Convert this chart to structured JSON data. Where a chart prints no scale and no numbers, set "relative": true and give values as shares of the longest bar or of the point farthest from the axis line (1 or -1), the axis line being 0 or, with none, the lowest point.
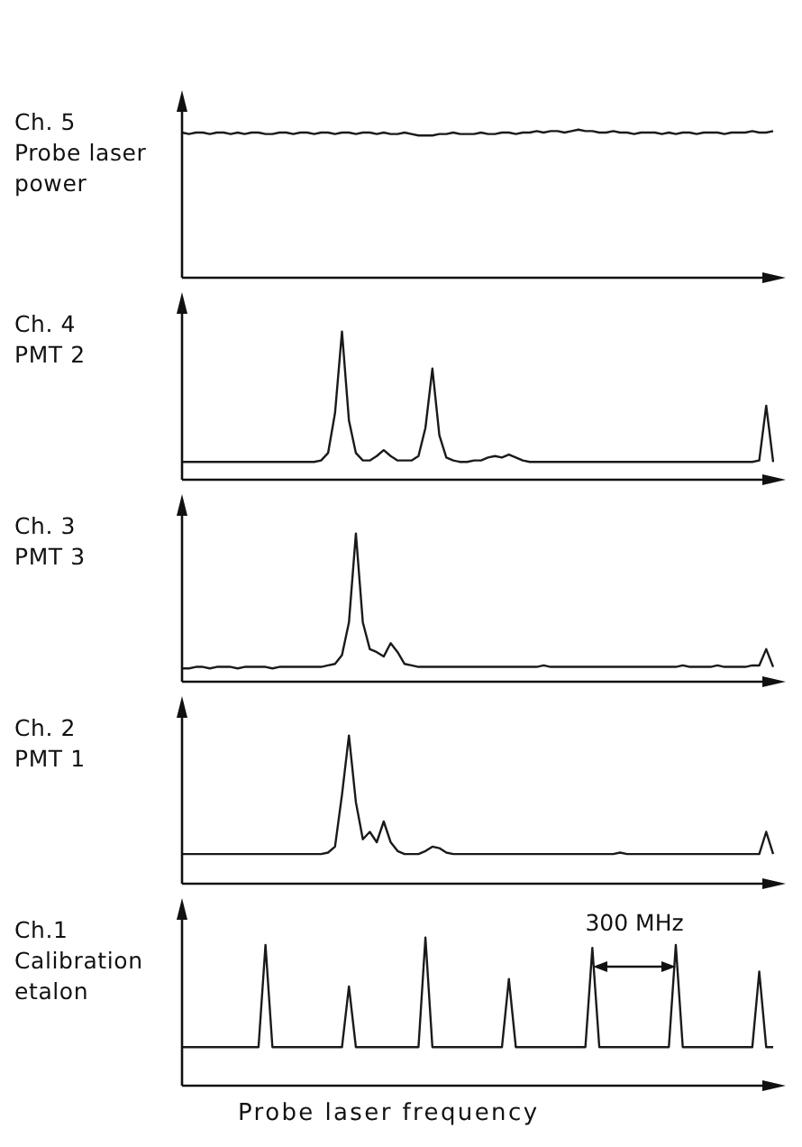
{
  "chart_data": [
    {
      "type": "line",
      "relative": true,
      "title": "Ch. 5",
      "subtitle": "Probe laser power",
      "color": "#1a1a1a",
      "categories": [
        null,
        null,
        null,
        null,
        null,
        null,
        null,
        null,
        null,
        null,
        null,
        null,
        null,
        null,
        null,
        null,
        null,
        null,
        null,
        null,
        null,
        null,
        null,
        null,
        null,
        null,
        null,
        null,
        null,
        null,
        null,
        null,
        null,
        null,
        null,
        null,
        null,
        null,
        null,
        null,
        null,
        null,
        null,
        null,
        null,
        null,
        null,
        null,
        null,
        null,
        null,
        null,
        null,
        null,
        null,
        null,
        null,
        null,
        null,
        null,
        null,
        null,
        null,
        null,
        null,
        null,
        null,
        null,
        null,
        null,
        null,
        null,
        null,
        null,
        null,
        null,
        null,
        null,
        null,
        null,
        null,
        null,
        null,
        null,
        null,
        null
      ],
      "values": [
        0.98,
        0.97,
        0.98,
        0.98,
        0.97,
        0.98,
        0.98,
        0.97,
        0.98,
        0.97,
        0.98,
        0.98,
        0.97,
        0.97,
        0.98,
        0.98,
        0.97,
        0.98,
        0.98,
        0.97,
        0.98,
        0.98,
        0.97,
        0.98,
        0.98,
        0.97,
        0.98,
        0.98,
        0.97,
        0.98,
        0.97,
        0.97,
        0.98,
        0.97,
        0.96,
        0.96,
        0.96,
        0.97,
        0.97,
        0.98,
        0.97,
        0.97,
        0.97,
        0.98,
        0.97,
        0.97,
        0.98,
        0.98,
        0.97,
        0.98,
        0.98,
        0.99,
        0.98,
        0.99,
        0.99,
        0.98,
        0.99,
        1.0,
        0.99,
        0.99,
        0.98,
        0.98,
        0.99,
        0.98,
        0.98,
        0.97,
        0.98,
        0.98,
        0.98,
        0.97,
        0.98,
        0.97,
        0.98,
        0.98,
        0.97,
        0.98,
        0.98,
        0.98,
        0.97,
        0.98,
        0.98,
        0.98,
        0.99,
        0.98,
        0.98,
        0.99
      ]
    },
    {
      "type": "line",
      "relative": true,
      "title": "Ch. 4",
      "subtitle": "PMT 2",
      "color": "#1a1a1a",
      "categories": [
        null,
        null,
        null,
        null,
        null,
        null,
        null,
        null,
        null,
        null,
        null,
        null,
        null,
        null,
        null,
        null,
        null,
        null,
        null,
        null,
        null,
        null,
        null,
        null,
        null,
        null,
        null,
        null,
        null,
        null,
        null,
        null,
        null,
        null,
        null,
        null,
        null,
        null,
        null,
        null,
        null,
        null,
        null,
        null,
        null,
        null,
        null,
        null,
        null,
        null,
        null,
        null,
        null,
        null,
        null,
        null,
        null,
        null,
        null,
        null,
        null,
        null,
        null,
        null,
        null,
        null,
        null,
        null,
        null,
        null,
        null,
        null,
        null,
        null,
        null,
        null,
        null,
        null,
        null,
        null,
        null,
        null,
        null,
        null,
        null,
        null
      ],
      "values": [
        0.12,
        0.12,
        0.12,
        0.12,
        0.12,
        0.12,
        0.12,
        0.12,
        0.12,
        0.12,
        0.12,
        0.12,
        0.12,
        0.12,
        0.12,
        0.12,
        0.12,
        0.12,
        0.12,
        0.12,
        0.13,
        0.18,
        0.45,
        1,
        0.4,
        0.18,
        0.13,
        0.13,
        0.16,
        0.2,
        0.16,
        0.13,
        0.13,
        0.13,
        0.16,
        0.35,
        0.75,
        0.3,
        0.15,
        0.13,
        0.12,
        0.12,
        0.13,
        0.13,
        0.15,
        0.16,
        0.15,
        0.17,
        0.15,
        0.13,
        0.12,
        0.12,
        0.12,
        0.12,
        0.12,
        0.12,
        0.12,
        0.12,
        0.12,
        0.12,
        0.12,
        0.12,
        0.12,
        0.12,
        0.12,
        0.12,
        0.12,
        0.12,
        0.12,
        0.12,
        0.12,
        0.12,
        0.12,
        0.12,
        0.12,
        0.12,
        0.12,
        0.12,
        0.12,
        0.12,
        0.12,
        0.12,
        0.12,
        0.13,
        0.5,
        0.12
      ]
    },
    {
      "type": "line",
      "relative": true,
      "title": "Ch. 3",
      "subtitle": "PMT 3",
      "color": "#1a1a1a",
      "categories": [
        null,
        null,
        null,
        null,
        null,
        null,
        null,
        null,
        null,
        null,
        null,
        null,
        null,
        null,
        null,
        null,
        null,
        null,
        null,
        null,
        null,
        null,
        null,
        null,
        null,
        null,
        null,
        null,
        null,
        null,
        null,
        null,
        null,
        null,
        null,
        null,
        null,
        null,
        null,
        null,
        null,
        null,
        null,
        null,
        null,
        null,
        null,
        null,
        null,
        null,
        null,
        null,
        null,
        null,
        null,
        null,
        null,
        null,
        null,
        null,
        null,
        null,
        null,
        null,
        null,
        null,
        null,
        null,
        null,
        null,
        null,
        null,
        null,
        null,
        null,
        null,
        null,
        null,
        null,
        null,
        null,
        null,
        null,
        null,
        null,
        null
      ],
      "values": [
        0.09,
        0.09,
        0.1,
        0.1,
        0.09,
        0.1,
        0.1,
        0.1,
        0.09,
        0.1,
        0.1,
        0.1,
        0.1,
        0.09,
        0.1,
        0.1,
        0.1,
        0.1,
        0.1,
        0.1,
        0.1,
        0.11,
        0.12,
        0.18,
        0.4,
        1,
        0.4,
        0.22,
        0.2,
        0.17,
        0.26,
        0.2,
        0.12,
        0.11,
        0.1,
        0.1,
        0.1,
        0.1,
        0.1,
        0.1,
        0.1,
        0.1,
        0.1,
        0.1,
        0.1,
        0.1,
        0.1,
        0.1,
        0.1,
        0.1,
        0.1,
        0.1,
        0.11,
        0.1,
        0.1,
        0.1,
        0.1,
        0.1,
        0.1,
        0.1,
        0.1,
        0.1,
        0.1,
        0.1,
        0.1,
        0.1,
        0.1,
        0.1,
        0.1,
        0.1,
        0.1,
        0.1,
        0.11,
        0.1,
        0.1,
        0.1,
        0.1,
        0.11,
        0.1,
        0.1,
        0.1,
        0.1,
        0.11,
        0.11,
        0.22,
        0.1
      ]
    },
    {
      "type": "line",
      "relative": true,
      "title": "Ch. 2",
      "subtitle": "PMT 1",
      "color": "#1a1a1a",
      "categories": [
        null,
        null,
        null,
        null,
        null,
        null,
        null,
        null,
        null,
        null,
        null,
        null,
        null,
        null,
        null,
        null,
        null,
        null,
        null,
        null,
        null,
        null,
        null,
        null,
        null,
        null,
        null,
        null,
        null,
        null,
        null,
        null,
        null,
        null,
        null,
        null,
        null,
        null,
        null,
        null,
        null,
        null,
        null,
        null,
        null,
        null,
        null,
        null,
        null,
        null,
        null,
        null,
        null,
        null,
        null,
        null,
        null,
        null,
        null,
        null,
        null,
        null,
        null,
        null,
        null,
        null,
        null,
        null,
        null,
        null,
        null,
        null,
        null,
        null,
        null,
        null,
        null,
        null,
        null,
        null,
        null,
        null,
        null,
        null,
        null,
        null
      ],
      "values": [
        0.2,
        0.2,
        0.2,
        0.2,
        0.2,
        0.2,
        0.2,
        0.2,
        0.2,
        0.2,
        0.2,
        0.2,
        0.2,
        0.2,
        0.2,
        0.2,
        0.2,
        0.2,
        0.2,
        0.2,
        0.2,
        0.21,
        0.25,
        0.6,
        1,
        0.55,
        0.3,
        0.35,
        0.28,
        0.42,
        0.28,
        0.22,
        0.2,
        0.2,
        0.2,
        0.22,
        0.25,
        0.24,
        0.21,
        0.2,
        0.2,
        0.2,
        0.2,
        0.2,
        0.2,
        0.2,
        0.2,
        0.2,
        0.2,
        0.2,
        0.2,
        0.2,
        0.2,
        0.2,
        0.2,
        0.2,
        0.2,
        0.2,
        0.2,
        0.2,
        0.2,
        0.2,
        0.2,
        0.21,
        0.2,
        0.2,
        0.2,
        0.2,
        0.2,
        0.2,
        0.2,
        0.2,
        0.2,
        0.2,
        0.2,
        0.2,
        0.2,
        0.2,
        0.2,
        0.2,
        0.2,
        0.2,
        0.2,
        0.2,
        0.35,
        0.2
      ]
    },
    {
      "type": "line",
      "relative": true,
      "title": "Ch.1",
      "subtitle": "Calibration etalon",
      "xlabel": "Probe laser frequency",
      "annotations": [
        "300 MHz"
      ],
      "color": "#1a1a1a",
      "categories": [
        null,
        null,
        null,
        null,
        null,
        null,
        null,
        null,
        null,
        null,
        null,
        null,
        null,
        null,
        null,
        null,
        null,
        null,
        null,
        null,
        null,
        null,
        null,
        null,
        null,
        null,
        null,
        null,
        null,
        null,
        null,
        null,
        null,
        null,
        null,
        null,
        null,
        null,
        null,
        null,
        null,
        null,
        null,
        null,
        null,
        null,
        null,
        null,
        null,
        null,
        null,
        null,
        null,
        null,
        null,
        null,
        null,
        null,
        null,
        null,
        null,
        null,
        null,
        null,
        null,
        null,
        null,
        null,
        null,
        null,
        null,
        null,
        null,
        null,
        null,
        null,
        null,
        null,
        null,
        null,
        null,
        null,
        null,
        null,
        null,
        null
      ],
      "values": [
        0.26,
        0.26,
        0.26,
        0.26,
        0.26,
        0.26,
        0.26,
        0.26,
        0.26,
        0.26,
        0.26,
        0.26,
        0.95,
        0.26,
        0.26,
        0.26,
        0.26,
        0.26,
        0.26,
        0.26,
        0.26,
        0.26,
        0.26,
        0.26,
        0.67,
        0.26,
        0.26,
        0.26,
        0.26,
        0.26,
        0.26,
        0.26,
        0.26,
        0.26,
        0.26,
        1,
        0.26,
        0.26,
        0.26,
        0.26,
        0.26,
        0.26,
        0.26,
        0.26,
        0.26,
        0.26,
        0.26,
        0.72,
        0.26,
        0.26,
        0.26,
        0.26,
        0.26,
        0.26,
        0.26,
        0.26,
        0.26,
        0.26,
        0.26,
        0.93,
        0.26,
        0.26,
        0.26,
        0.26,
        0.26,
        0.26,
        0.26,
        0.26,
        0.26,
        0.26,
        0.26,
        0.95,
        0.26,
        0.26,
        0.26,
        0.26,
        0.26,
        0.26,
        0.26,
        0.26,
        0.26,
        0.26,
        0.26,
        0.77,
        0.26,
        0.26
      ]
    }
  ]
}
